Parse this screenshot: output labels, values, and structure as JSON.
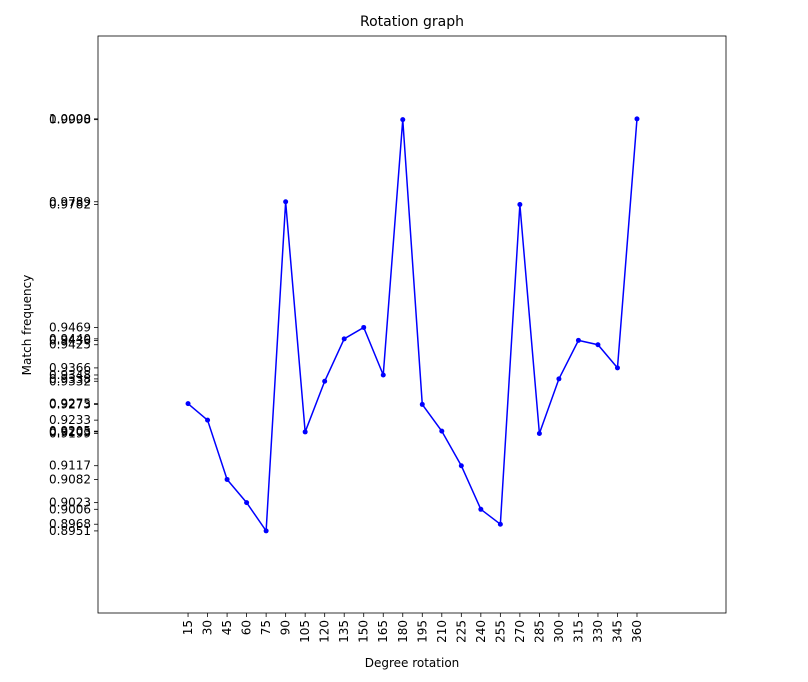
{
  "chart_data": {
    "type": "line",
    "title": "Rotation graph",
    "xlabel": "Degree rotation",
    "ylabel": "Match frequency",
    "x": [
      15,
      30,
      45,
      60,
      75,
      90,
      105,
      120,
      135,
      150,
      165,
      180,
      195,
      210,
      225,
      240,
      255,
      270,
      285,
      300,
      315,
      330,
      345,
      360
    ],
    "series": [
      {
        "name": "Match frequency",
        "color": "#0000ff",
        "values": [
          0.9275,
          0.9233,
          0.9082,
          0.9023,
          0.8951,
          0.9789,
          0.9203,
          0.9332,
          0.944,
          0.9469,
          0.9348,
          0.9998,
          0.9273,
          0.9205,
          0.9117,
          0.9006,
          0.8968,
          0.9782,
          0.9199,
          0.9338,
          0.9436,
          0.9425,
          0.9366,
          1
        ]
      }
    ],
    "xlim": [
      -54.2,
      428.4
    ],
    "xticks": [
      15,
      30,
      45,
      60,
      75,
      90,
      105,
      120,
      135,
      150,
      165,
      180,
      195,
      210,
      225,
      240,
      255,
      270,
      285,
      300,
      315,
      330,
      345,
      360
    ],
    "ylim": [
      0.8742,
      1.0211
    ],
    "yticks": [
      0.8951,
      0.8968,
      0.9006,
      0.9023,
      0.9082,
      0.9117,
      0.9199,
      0.9203,
      0.9205,
      0.9233,
      0.9273,
      0.9275,
      0.9332,
      0.9338,
      0.9348,
      0.9366,
      0.9425,
      0.9436,
      {
        "value": 0.944,
        "label": "0.9440"
      },
      0.9469,
      0.9782,
      0.9789,
      0.9998,
      {
        "value": 1,
        "label": "1.0000"
      }
    ]
  }
}
